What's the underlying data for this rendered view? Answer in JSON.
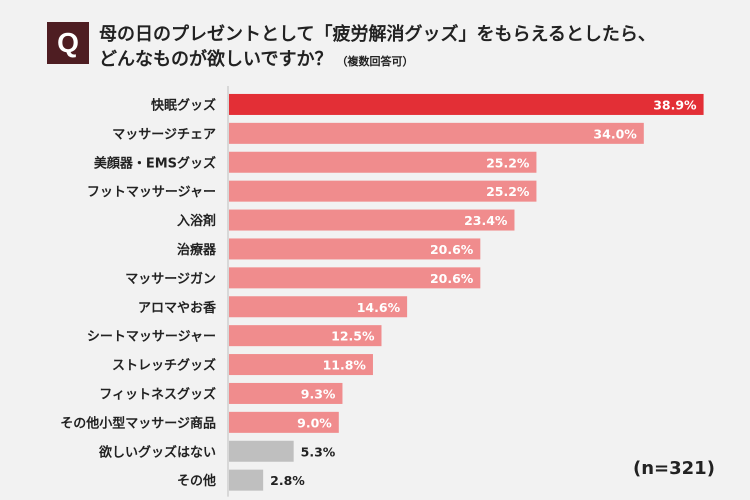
{
  "question": {
    "badge": "Q",
    "line1": "母の日のプレゼントとして「疲労解消グッズ」をもらえるとしたら、",
    "line2": "どんなものが欲しいですか？",
    "note": "（複数回答可）"
  },
  "sample_size": "(n=321)",
  "colors": {
    "top": "#e32f36",
    "regular": "#f08c8d",
    "muted": "#bfbfbf"
  },
  "chart_data": {
    "type": "bar",
    "orientation": "horizontal",
    "title": "",
    "xlabel": "",
    "ylabel": "",
    "xlim": [
      0,
      40
    ],
    "unit": "%",
    "grid": false,
    "categories": [
      "快眠グッズ",
      "マッサージチェア",
      "美顔器・EMSグッズ",
      "フットマッサージャー",
      "入浴剤",
      "治療器",
      "マッサージガン",
      "アロマやお香",
      "シートマッサージャー",
      "ストレッチグッズ",
      "フィットネスグッズ",
      "その他小型マッサージ商品",
      "欲しいグッズはない",
      "その他"
    ],
    "values": [
      38.9,
      34.0,
      25.2,
      25.2,
      23.4,
      20.6,
      20.6,
      14.6,
      12.5,
      11.8,
      9.3,
      9.0,
      5.3,
      2.8
    ],
    "value_labels": [
      "38.9%",
      "34.0%",
      "25.2%",
      "25.2%",
      "23.4%",
      "20.6%",
      "20.6%",
      "14.6%",
      "12.5%",
      "11.8%",
      "9.3%",
      "9.0%",
      "5.3%",
      "2.8%"
    ],
    "bar_color_roles": [
      "top",
      "regular",
      "regular",
      "regular",
      "regular",
      "regular",
      "regular",
      "regular",
      "regular",
      "regular",
      "regular",
      "regular",
      "muted",
      "muted"
    ]
  }
}
